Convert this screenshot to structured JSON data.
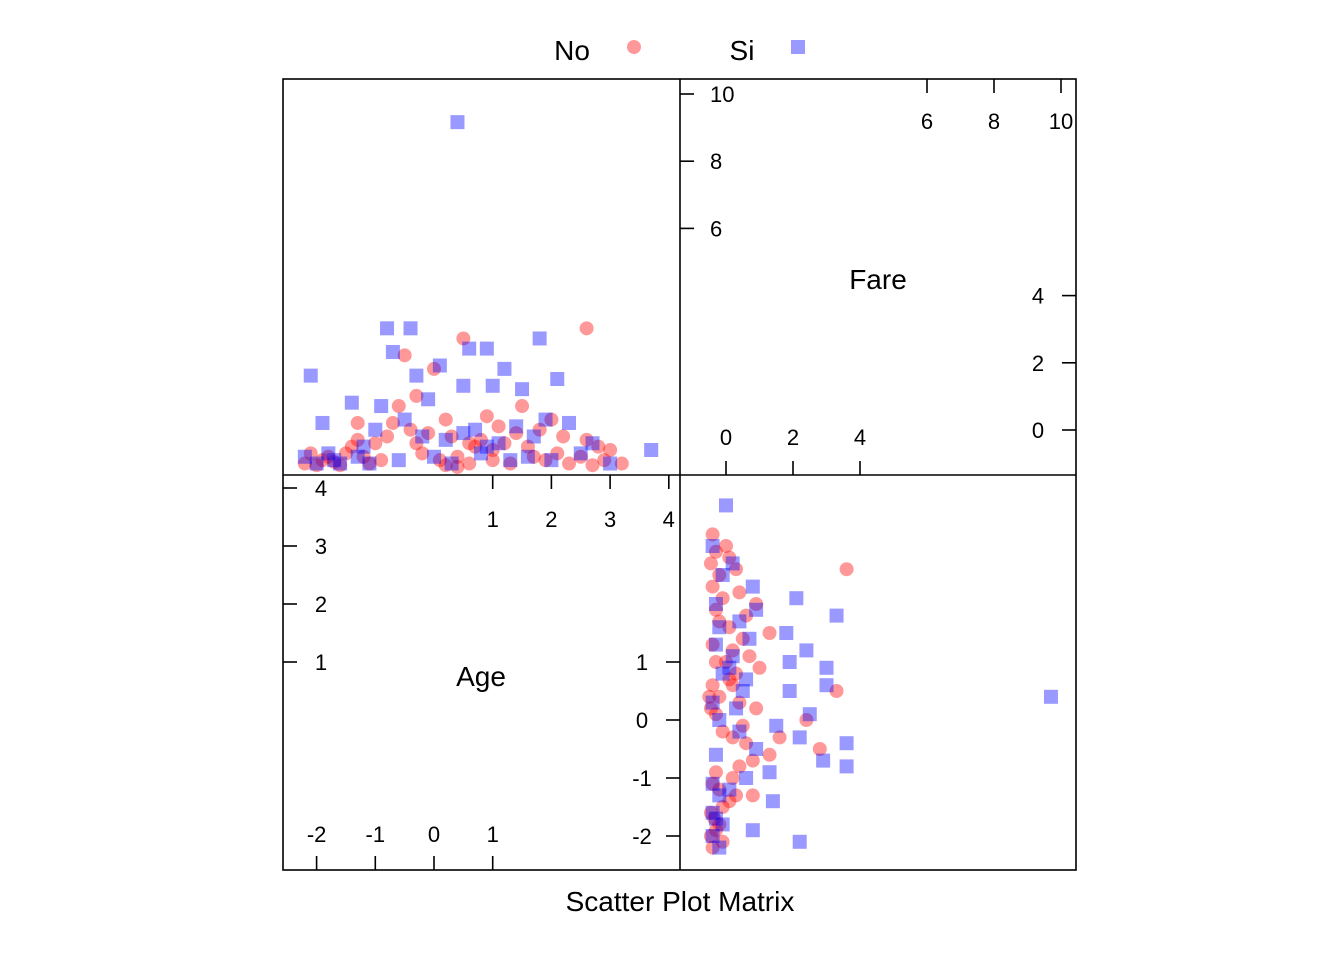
{
  "chart_data": {
    "type": "scatter",
    "subtype": "scatter-plot-matrix",
    "xlabel": "Scatter Plot Matrix",
    "legend": {
      "placement": "top",
      "entries": [
        {
          "name": "No",
          "color": "#ff0000",
          "marker": "circle",
          "alpha": 0.4
        },
        {
          "name": "Si",
          "color": "#0000ff",
          "marker": "square",
          "alpha": 0.4
        }
      ]
    },
    "variables": [
      {
        "name": "Age",
        "range": [
          -2.25,
          4.5
        ],
        "ticks": [
          "-2",
          "-1",
          "0",
          "1",
          "2",
          "3",
          "4"
        ]
      },
      {
        "name": "Fare",
        "range": [
          -1.3,
          10.3
        ],
        "ticks": [
          "0",
          "2",
          "4",
          "6",
          "8",
          "10"
        ]
      }
    ],
    "series": [
      {
        "name": "No",
        "points": [
          [
            -2.2,
            -0.4
          ],
          [
            -2.1,
            -0.1
          ],
          [
            -2.0,
            -0.45
          ],
          [
            -1.9,
            -0.3
          ],
          [
            -1.8,
            -0.2
          ],
          [
            -1.7,
            -0.35
          ],
          [
            -1.6,
            -0.45
          ],
          [
            -1.5,
            -0.1
          ],
          [
            -1.4,
            0.1
          ],
          [
            -1.3,
            0.3
          ],
          [
            -1.2,
            -0.2
          ],
          [
            -1.1,
            -0.4
          ],
          [
            -1.0,
            0.2
          ],
          [
            -0.9,
            -0.3
          ],
          [
            -0.8,
            0.4
          ],
          [
            -0.7,
            0.8
          ],
          [
            -0.6,
            1.3
          ],
          [
            -0.5,
            2.8
          ],
          [
            -0.4,
            0.6
          ],
          [
            -0.3,
            0.2
          ],
          [
            -0.2,
            -0.1
          ],
          [
            -0.1,
            0.5
          ],
          [
            0.0,
            2.4
          ],
          [
            0.1,
            -0.3
          ],
          [
            0.2,
            0.9
          ],
          [
            0.3,
            0.4
          ],
          [
            0.4,
            -0.2
          ],
          [
            0.5,
            3.3
          ],
          [
            0.6,
            -0.4
          ],
          [
            0.7,
            0.1
          ],
          [
            0.8,
            0.3
          ],
          [
            0.9,
            1.0
          ],
          [
            1.0,
            -0.3
          ],
          [
            1.1,
            0.7
          ],
          [
            1.2,
            0.2
          ],
          [
            1.3,
            -0.4
          ],
          [
            1.4,
            0.5
          ],
          [
            1.5,
            1.3
          ],
          [
            1.6,
            0.1
          ],
          [
            1.7,
            -0.2
          ],
          [
            1.8,
            0.6
          ],
          [
            1.9,
            -0.3
          ],
          [
            2.0,
            0.9
          ],
          [
            2.1,
            -0.1
          ],
          [
            2.2,
            0.4
          ],
          [
            2.3,
            -0.4
          ],
          [
            2.5,
            -0.2
          ],
          [
            2.6,
            0.3
          ],
          [
            2.7,
            -0.45
          ],
          [
            2.8,
            0.1
          ],
          [
            2.9,
            -0.3
          ],
          [
            3.0,
            0.0
          ],
          [
            3.2,
            -0.4
          ],
          [
            2.6,
            3.6
          ],
          [
            -0.3,
            1.6
          ],
          [
            0.2,
            -0.45
          ],
          [
            -1.3,
            0.8
          ],
          [
            0.4,
            -0.5
          ],
          [
            1.0,
            0.0
          ],
          [
            0.6,
            0.2
          ]
        ]
      },
      {
        "name": "Si",
        "points": [
          [
            -2.2,
            -0.2
          ],
          [
            -2.1,
            2.2
          ],
          [
            -2.0,
            -0.4
          ],
          [
            -1.9,
            0.8
          ],
          [
            -1.8,
            -0.1
          ],
          [
            -1.7,
            -0.3
          ],
          [
            -1.6,
            -0.4
          ],
          [
            -1.4,
            1.4
          ],
          [
            -1.3,
            -0.2
          ],
          [
            -1.2,
            0.1
          ],
          [
            -1.1,
            -0.4
          ],
          [
            -1.0,
            0.6
          ],
          [
            -0.9,
            1.3
          ],
          [
            -0.8,
            3.6
          ],
          [
            -0.7,
            2.9
          ],
          [
            -0.6,
            -0.3
          ],
          [
            -0.5,
            0.9
          ],
          [
            -0.4,
            3.6
          ],
          [
            -0.3,
            2.2
          ],
          [
            -0.2,
            0.4
          ],
          [
            -0.1,
            1.5
          ],
          [
            0.0,
            -0.2
          ],
          [
            0.1,
            2.5
          ],
          [
            0.2,
            0.3
          ],
          [
            0.3,
            -0.4
          ],
          [
            0.4,
            9.7
          ],
          [
            0.5,
            1.9
          ],
          [
            0.6,
            3.0
          ],
          [
            0.7,
            0.6
          ],
          [
            0.8,
            -0.1
          ],
          [
            0.9,
            3.0
          ],
          [
            1.0,
            1.9
          ],
          [
            1.1,
            0.2
          ],
          [
            1.2,
            2.4
          ],
          [
            1.3,
            -0.3
          ],
          [
            1.4,
            0.7
          ],
          [
            1.5,
            1.8
          ],
          [
            1.6,
            -0.2
          ],
          [
            1.7,
            0.4
          ],
          [
            1.8,
            3.3
          ],
          [
            1.9,
            0.9
          ],
          [
            2.0,
            -0.3
          ],
          [
            2.1,
            2.1
          ],
          [
            2.3,
            0.8
          ],
          [
            2.5,
            -0.1
          ],
          [
            2.7,
            0.2
          ],
          [
            3.0,
            -0.4
          ],
          [
            3.7,
            0.0
          ],
          [
            0.5,
            0.5
          ],
          [
            0.9,
            0.1
          ]
        ]
      }
    ]
  }
}
